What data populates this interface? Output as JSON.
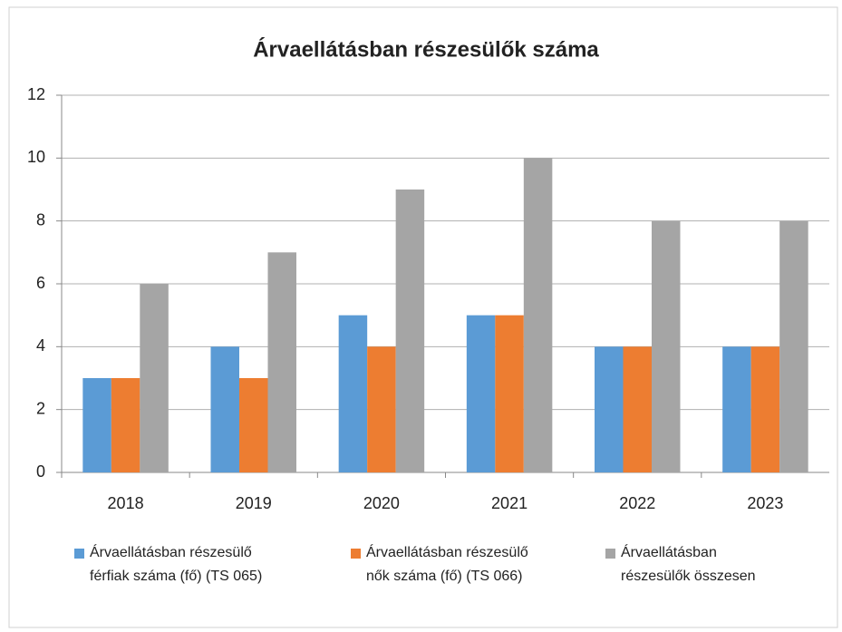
{
  "chart_data": {
    "type": "bar",
    "title": "Árvaellátásban részesülők száma",
    "categories": [
      "2018",
      "2019",
      "2020",
      "2021",
      "2022",
      "2023"
    ],
    "series": [
      {
        "name": "Árvaellátásban részesülő férfiak száma (fő) (TS 065)",
        "color": "#5b9bd5",
        "values": [
          3,
          4,
          5,
          5,
          4,
          4
        ]
      },
      {
        "name": "Árvaellátásban részesülő nők száma (fő) (TS 066)",
        "color": "#ed7d31",
        "values": [
          3,
          3,
          4,
          5,
          4,
          4
        ]
      },
      {
        "name": "Árvaellátásban részesülők összesen",
        "color": "#a5a5a5",
        "values": [
          6,
          7,
          9,
          10,
          8,
          8
        ]
      }
    ],
    "ylim": [
      0,
      12
    ],
    "yticks": [
      0,
      2,
      4,
      6,
      8,
      10,
      12
    ],
    "grid": true,
    "legend": "bottom"
  }
}
